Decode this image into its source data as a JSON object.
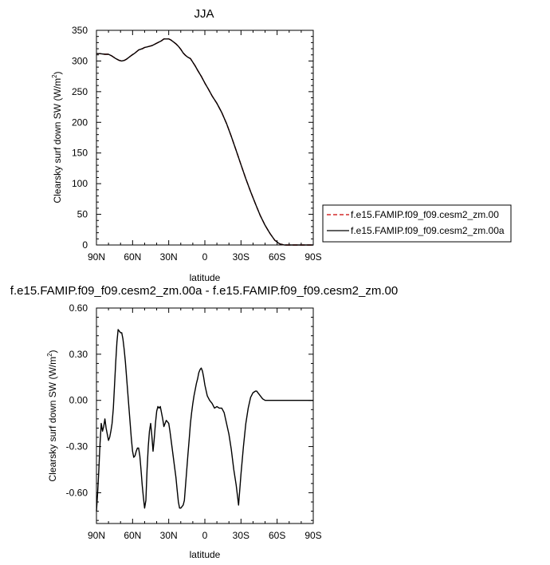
{
  "chart_data": [
    {
      "type": "line",
      "title": "JJA",
      "xlabel": "latitude",
      "ylabel": "Clearsky surf down SW (W/m",
      "ylabel_sup": "2",
      "ylabel_end": ")",
      "xlim": [
        90,
        -90
      ],
      "ylim": [
        0,
        350
      ],
      "xticks": [
        90,
        60,
        30,
        0,
        -30,
        -60,
        -90
      ],
      "xtick_labels": [
        "90N",
        "60N",
        "30N",
        "0",
        "30S",
        "60S",
        "90S"
      ],
      "yticks": [
        0,
        50,
        100,
        150,
        200,
        250,
        300,
        350
      ],
      "ytick_labels": [
        "0",
        "50",
        "100",
        "150",
        "200",
        "250",
        "300",
        "350"
      ],
      "legend_position": "right",
      "series": [
        {
          "name": "f.e15.FAMIP.f09_f09.cesm2_zm.00",
          "color": "#cc0000",
          "dash": true,
          "x": [
            90,
            87,
            83,
            80,
            77,
            74,
            71,
            69,
            67,
            65,
            63,
            61,
            58,
            55,
            52,
            50,
            48,
            46,
            44,
            42,
            40,
            38,
            36,
            34,
            32,
            30,
            28,
            26,
            24,
            22,
            20,
            18,
            16,
            14,
            12,
            10,
            8,
            6,
            3,
            0,
            -3,
            -6,
            -10,
            -14,
            -18,
            -22,
            -26,
            -30,
            -34,
            -38,
            -42,
            -46,
            -50,
            -54,
            -58,
            -62,
            -66,
            -70,
            -74,
            -78,
            -82,
            -86,
            -90
          ],
          "y": [
            312,
            312,
            311,
            311,
            308,
            304,
            301,
            300,
            301,
            303,
            306,
            309,
            313,
            318,
            320,
            322,
            323,
            324,
            325,
            327,
            329,
            331,
            333,
            336,
            336,
            336,
            334,
            331,
            328,
            324,
            319,
            313,
            309,
            306,
            304,
            298,
            292,
            285,
            275,
            264,
            254,
            243,
            231,
            216,
            198,
            177,
            154,
            131,
            108,
            87,
            67,
            48,
            32,
            19,
            8,
            2,
            0,
            0,
            0,
            0,
            0,
            0,
            0
          ]
        },
        {
          "name": "f.e15.FAMIP.f09_f09.cesm2_zm.00a",
          "color": "#000000",
          "dash": false,
          "x": [
            90,
            87,
            83,
            80,
            77,
            74,
            71,
            69,
            67,
            65,
            63,
            61,
            58,
            55,
            52,
            50,
            48,
            46,
            44,
            42,
            40,
            38,
            36,
            34,
            32,
            30,
            28,
            26,
            24,
            22,
            20,
            18,
            16,
            14,
            12,
            10,
            8,
            6,
            3,
            0,
            -3,
            -6,
            -10,
            -14,
            -18,
            -22,
            -26,
            -30,
            -34,
            -38,
            -42,
            -46,
            -50,
            -54,
            -58,
            -62,
            -66,
            -70,
            -74,
            -78,
            -82,
            -86,
            -90
          ],
          "y": [
            312,
            312,
            311,
            311,
            308,
            304,
            301,
            300,
            301,
            303,
            306,
            309,
            313,
            318,
            320,
            322,
            323,
            324,
            325,
            327,
            329,
            331,
            333,
            336,
            336,
            336,
            334,
            331,
            328,
            324,
            319,
            313,
            309,
            306,
            304,
            298,
            292,
            285,
            275,
            264,
            254,
            243,
            231,
            216,
            198,
            177,
            154,
            131,
            108,
            87,
            67,
            48,
            32,
            19,
            8,
            2,
            0,
            0,
            0,
            0,
            0,
            0,
            0
          ]
        }
      ]
    },
    {
      "type": "line",
      "title": "f.e15.FAMIP.f09_f09.cesm2_zm.00a - f.e15.FAMIP.f09_f09.cesm2_zm.00",
      "xlabel": "latitude",
      "ylabel": "Clearsky surf down SW (W/m",
      "ylabel_sup": "2",
      "ylabel_end": ")",
      "xlim": [
        90,
        -90
      ],
      "ylim": [
        -0.8,
        0.6
      ],
      "xticks": [
        90,
        60,
        30,
        0,
        -30,
        -60,
        -90
      ],
      "xtick_labels": [
        "90N",
        "60N",
        "30N",
        "0",
        "30S",
        "60S",
        "90S"
      ],
      "yticks": [
        -0.6,
        -0.3,
        0.0,
        0.3,
        0.6
      ],
      "ytick_labels": [
        "-0.60",
        "-0.30",
        "0.00",
        "0.30",
        "0.60"
      ],
      "series": [
        {
          "color": "#000000",
          "x": [
            90,
            89,
            88,
            87,
            86,
            85,
            84,
            83,
            82,
            81,
            80,
            79,
            78,
            77,
            76,
            75,
            74,
            73,
            72,
            71,
            70,
            69,
            68,
            67,
            66,
            65,
            64,
            63,
            62,
            61,
            60,
            59,
            58,
            57,
            56,
            55,
            54,
            53,
            52,
            51,
            50,
            49,
            48,
            47,
            46,
            45,
            44,
            43,
            42,
            41,
            40,
            39,
            38,
            37,
            36,
            35,
            34,
            33,
            32,
            31,
            30,
            29,
            28,
            27,
            26,
            25,
            24,
            23,
            22,
            21,
            20,
            19,
            18,
            17,
            16,
            15,
            14,
            13,
            12,
            11,
            10,
            9,
            8,
            7,
            6,
            5,
            4,
            3,
            2,
            1,
            0,
            -2,
            -4,
            -6,
            -8,
            -10,
            -12,
            -14,
            -16,
            -18,
            -20,
            -22,
            -24,
            -26,
            -28,
            -30,
            -32,
            -34,
            -36,
            -38,
            -40,
            -42,
            -43,
            -44,
            -46,
            -48,
            -50,
            -52,
            -54,
            -56,
            -58,
            -60,
            -62,
            -64,
            -66,
            -68,
            -72,
            -78,
            -84,
            -90
          ],
          "y": [
            -0.72,
            -0.6,
            -0.45,
            -0.28,
            -0.15,
            -0.2,
            -0.17,
            -0.12,
            -0.18,
            -0.22,
            -0.26,
            -0.24,
            -0.2,
            -0.15,
            -0.05,
            0.1,
            0.25,
            0.38,
            0.46,
            0.45,
            0.44,
            0.44,
            0.4,
            0.33,
            0.25,
            0.15,
            0.05,
            -0.05,
            -0.15,
            -0.25,
            -0.33,
            -0.37,
            -0.36,
            -0.33,
            -0.31,
            -0.31,
            -0.36,
            -0.45,
            -0.55,
            -0.63,
            -0.7,
            -0.65,
            -0.45,
            -0.3,
            -0.2,
            -0.15,
            -0.23,
            -0.33,
            -0.25,
            -0.15,
            -0.07,
            -0.04,
            -0.05,
            -0.04,
            -0.08,
            -0.12,
            -0.17,
            -0.15,
            -0.13,
            -0.14,
            -0.15,
            -0.2,
            -0.26,
            -0.32,
            -0.38,
            -0.44,
            -0.5,
            -0.58,
            -0.66,
            -0.7,
            -0.7,
            -0.69,
            -0.68,
            -0.65,
            -0.55,
            -0.45,
            -0.35,
            -0.25,
            -0.15,
            -0.08,
            -0.02,
            0.03,
            0.07,
            0.11,
            0.14,
            0.18,
            0.2,
            0.21,
            0.19,
            0.15,
            0.1,
            0.03,
            0.0,
            -0.02,
            -0.05,
            -0.04,
            -0.05,
            -0.05,
            -0.08,
            -0.15,
            -0.22,
            -0.32,
            -0.45,
            -0.55,
            -0.68,
            -0.48,
            -0.3,
            -0.15,
            -0.05,
            0.02,
            0.05,
            0.06,
            0.06,
            0.05,
            0.03,
            0.01,
            0.0,
            0.0,
            0.0,
            0.0,
            0.0,
            0.0,
            0.0,
            0.0,
            0.0,
            0.0,
            0.0,
            0.0,
            0.0,
            0.0
          ]
        }
      ]
    }
  ]
}
